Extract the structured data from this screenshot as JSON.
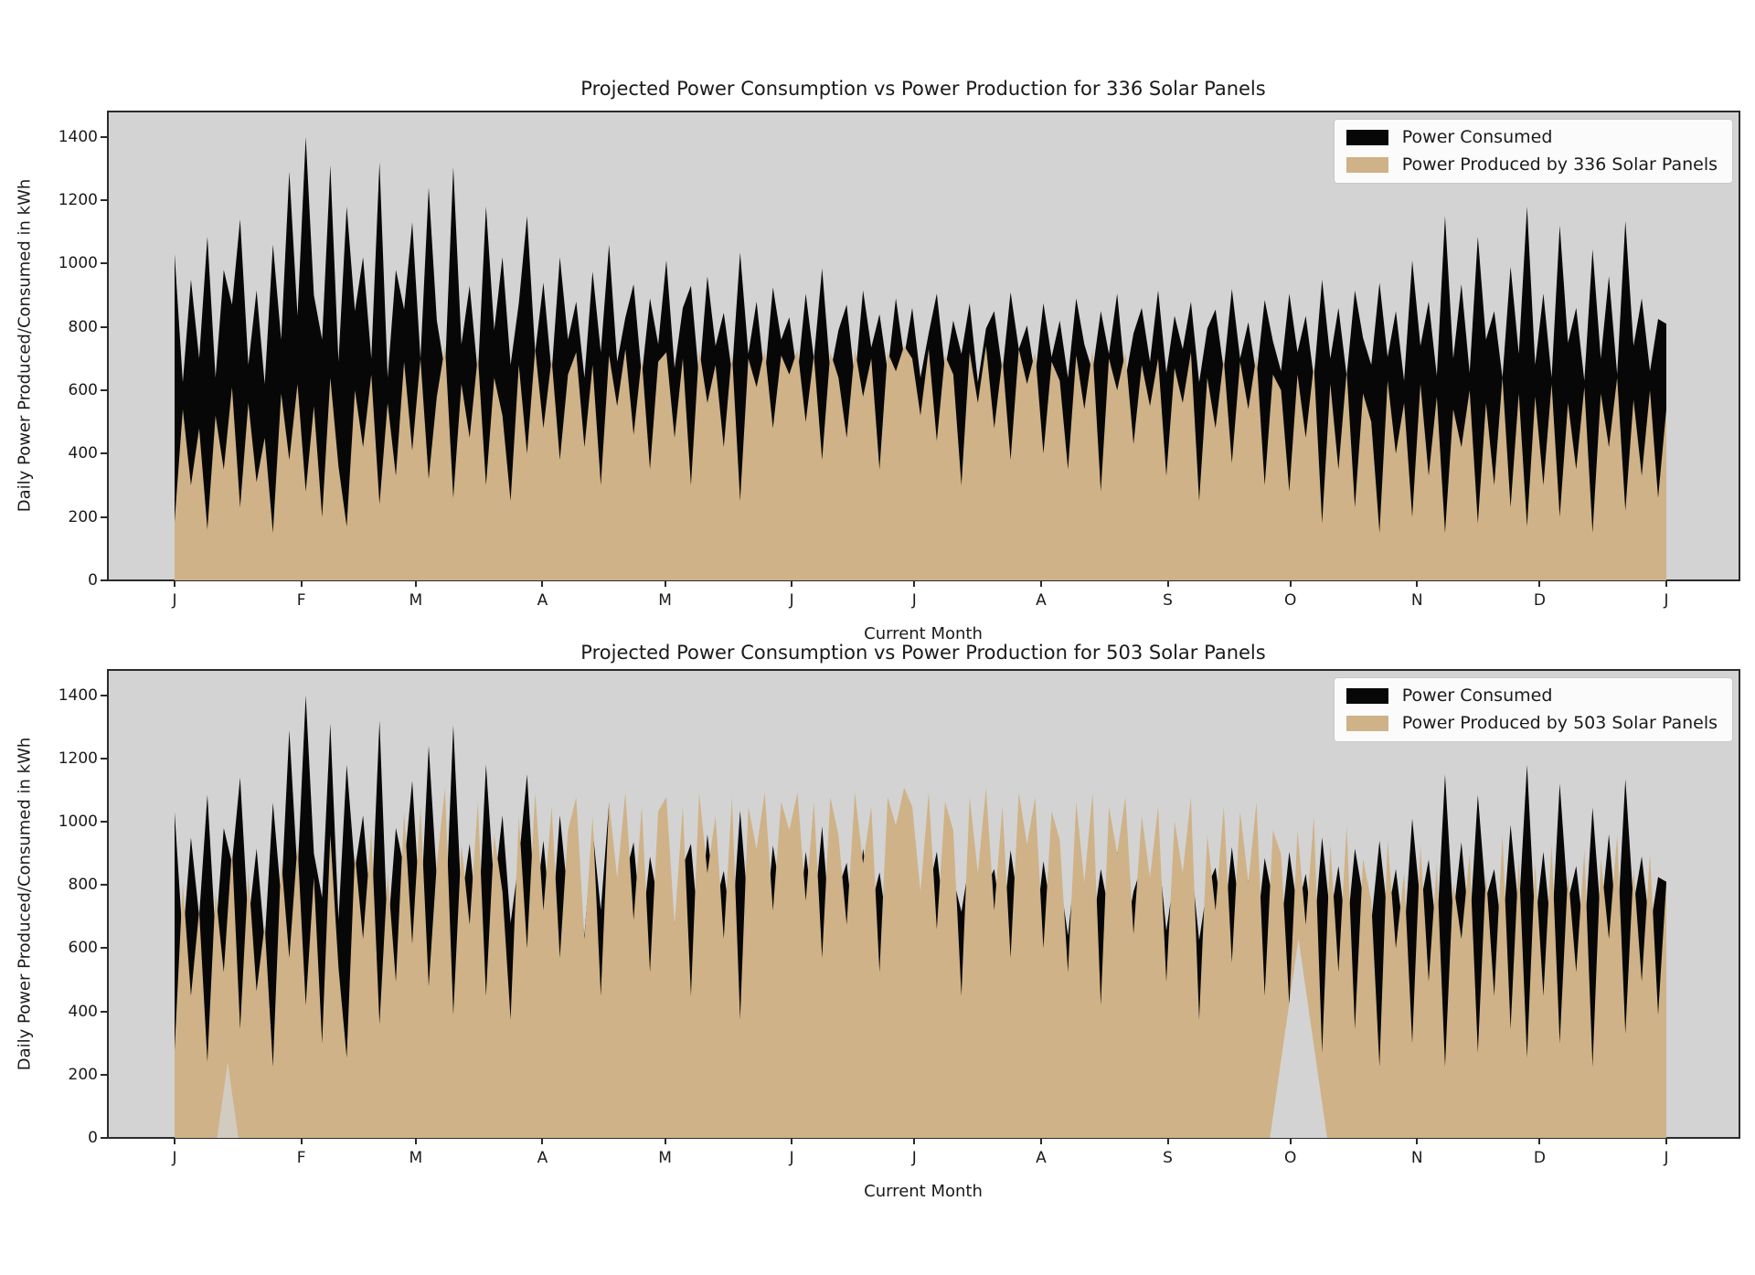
{
  "colors": {
    "consumed": "#070707",
    "produced": "#cfb287",
    "axes_background": "#d3d3d3",
    "figure_background": "#ffffff",
    "spine": "#2b2b2b",
    "legend_background": "#fbfbfb"
  },
  "chart_data": [
    {
      "type": "area",
      "title": "Projected Power Consumption vs Power Production for 336 Solar Panels",
      "xlabel": "Current Month",
      "ylabel": "Daily Power Produced/Consumed in kWh",
      "legend": [
        "Power Consumed",
        "Power Produced by 336 Solar Panels"
      ],
      "legend_position": "upper right",
      "grid": false,
      "ylim": [
        0,
        1480
      ],
      "yticks": [
        0,
        200,
        400,
        600,
        800,
        1000,
        1200,
        1400
      ],
      "xticklabels": [
        "J",
        "F",
        "M",
        "A",
        "M",
        "J",
        "J",
        "A",
        "S",
        "O",
        "N",
        "D",
        "J"
      ],
      "xtick_days": [
        0,
        31,
        59,
        90,
        120,
        151,
        181,
        212,
        243,
        273,
        304,
        334,
        365
      ],
      "x_span_days": 365,
      "series_consumed": [
        1030,
        625,
        950,
        700,
        1085,
        640,
        980,
        870,
        1140,
        680,
        915,
        620,
        1060,
        760,
        1290,
        835,
        1400,
        900,
        760,
        1310,
        690,
        1180,
        850,
        1020,
        700,
        1320,
        640,
        980,
        855,
        1130,
        700,
        1240,
        820,
        660,
        1305,
        745,
        930,
        650,
        1180,
        790,
        1020,
        680,
        875,
        1150,
        720,
        940,
        655,
        1020,
        760,
        880,
        640,
        975,
        720,
        1060,
        690,
        830,
        935,
        645,
        890,
        745,
        1010,
        670,
        860,
        930,
        635,
        960,
        740,
        845,
        655,
        1035,
        715,
        880,
        640,
        925,
        760,
        830,
        645,
        905,
        700,
        985,
        655,
        790,
        870,
        630,
        915,
        735,
        840,
        660,
        890,
        705,
        860,
        640,
        780,
        905,
        665,
        820,
        715,
        875,
        625,
        795,
        850,
        660,
        910,
        730,
        805,
        645,
        875,
        705,
        820,
        640,
        890,
        745,
        660,
        850,
        715,
        905,
        635,
        780,
        860,
        690,
        915,
        655,
        835,
        730,
        880,
        625,
        795,
        855,
        665,
        920,
        700,
        815,
        645,
        885,
        755,
        660,
        905,
        720,
        835,
        640,
        950,
        700,
        860,
        645,
        915,
        765,
        680,
        940,
        705,
        850,
        630,
        1010,
        740,
        880,
        645,
        1150,
        700,
        935,
        655,
        1085,
        760,
        850,
        640,
        990,
        715,
        1180,
        680,
        905,
        640,
        1120,
        750,
        860,
        630,
        1045,
        700,
        960,
        650,
        1135,
        740,
        890,
        660,
        825,
        810
      ],
      "series_produced": [
        185,
        540,
        300,
        480,
        160,
        520,
        350,
        610,
        230,
        560,
        310,
        450,
        150,
        590,
        380,
        620,
        280,
        550,
        200,
        640,
        360,
        170,
        600,
        420,
        650,
        240,
        560,
        330,
        690,
        410,
        700,
        320,
        580,
        740,
        260,
        620,
        450,
        710,
        300,
        640,
        520,
        250,
        680,
        400,
        730,
        480,
        700,
        380,
        650,
        720,
        420,
        680,
        300,
        710,
        550,
        730,
        460,
        700,
        350,
        690,
        720,
        450,
        700,
        300,
        730,
        560,
        680,
        420,
        720,
        250,
        700,
        610,
        730,
        480,
        710,
        650,
        730,
        500,
        710,
        380,
        720,
        640,
        450,
        730,
        580,
        700,
        350,
        720,
        660,
        740,
        700,
        520,
        730,
        440,
        710,
        650,
        300,
        720,
        560,
        740,
        480,
        700,
        380,
        730,
        620,
        720,
        400,
        690,
        630,
        350,
        710,
        540,
        730,
        280,
        700,
        600,
        720,
        430,
        680,
        550,
        700,
        330,
        670,
        560,
        720,
        250,
        640,
        480,
        700,
        370,
        690,
        540,
        710,
        300,
        650,
        600,
        280,
        650,
        450,
        680,
        180,
        620,
        350,
        660,
        230,
        590,
        500,
        150,
        630,
        400,
        560,
        200,
        620,
        330,
        580,
        150,
        540,
        420,
        600,
        180,
        560,
        300,
        640,
        230,
        590,
        170,
        580,
        300,
        620,
        200,
        560,
        350,
        610,
        150,
        590,
        420,
        640,
        220,
        570,
        330,
        600,
        260,
        540
      ],
      "background_gaps": []
    },
    {
      "type": "area",
      "title": "Projected Power Consumption vs Power Production for 503 Solar Panels",
      "xlabel": "Current Month",
      "ylabel": "Daily Power Produced/Consumed in kWh",
      "legend": [
        "Power Consumed",
        "Power Produced by 503 Solar Panels"
      ],
      "legend_position": "upper right",
      "grid": false,
      "ylim": [
        0,
        1480
      ],
      "yticks": [
        0,
        200,
        400,
        600,
        800,
        1000,
        1200,
        1400
      ],
      "xticklabels": [
        "J",
        "F",
        "M",
        "A",
        "M",
        "J",
        "J",
        "A",
        "S",
        "O",
        "N",
        "D",
        "J"
      ],
      "xtick_days": [
        0,
        31,
        59,
        90,
        120,
        151,
        181,
        212,
        243,
        273,
        304,
        334,
        365
      ],
      "x_span_days": 365,
      "series_consumed": [
        1030,
        625,
        950,
        700,
        1085,
        640,
        980,
        870,
        1140,
        680,
        915,
        620,
        1060,
        760,
        1290,
        835,
        1400,
        900,
        760,
        1310,
        690,
        1180,
        850,
        1020,
        700,
        1320,
        640,
        980,
        855,
        1130,
        700,
        1240,
        820,
        660,
        1305,
        745,
        930,
        650,
        1180,
        790,
        1020,
        680,
        875,
        1150,
        720,
        940,
        655,
        1020,
        760,
        880,
        640,
        975,
        720,
        1060,
        690,
        830,
        935,
        645,
        890,
        745,
        1010,
        670,
        860,
        930,
        635,
        960,
        740,
        845,
        655,
        1035,
        715,
        880,
        640,
        925,
        760,
        830,
        645,
        905,
        700,
        985,
        655,
        790,
        870,
        630,
        915,
        735,
        840,
        660,
        890,
        705,
        860,
        640,
        780,
        905,
        665,
        820,
        715,
        875,
        625,
        795,
        850,
        660,
        910,
        730,
        805,
        645,
        875,
        705,
        820,
        640,
        890,
        745,
        660,
        850,
        715,
        905,
        635,
        780,
        860,
        690,
        915,
        655,
        835,
        730,
        880,
        625,
        795,
        855,
        665,
        920,
        700,
        815,
        645,
        885,
        755,
        660,
        905,
        720,
        835,
        640,
        950,
        700,
        860,
        645,
        915,
        765,
        680,
        940,
        705,
        850,
        630,
        1010,
        740,
        880,
        645,
        1150,
        700,
        935,
        655,
        1085,
        760,
        850,
        640,
        990,
        715,
        1180,
        680,
        905,
        640,
        1120,
        750,
        860,
        630,
        1045,
        700,
        960,
        650,
        1135,
        740,
        890,
        660,
        825,
        810
      ],
      "series_produced": [
        277,
        808,
        449,
        719,
        240,
        778,
        524,
        913,
        344,
        838,
        464,
        674,
        225,
        883,
        569,
        928,
        419,
        823,
        299,
        958,
        539,
        254,
        898,
        629,
        973,
        359,
        838,
        494,
        1033,
        614,
        1048,
        479,
        868,
        1108,
        389,
        928,
        674,
        1063,
        449,
        958,
        778,
        374,
        1018,
        599,
        1093,
        719,
        1048,
        569,
        973,
        1078,
        629,
        1018,
        449,
        1063,
        823,
        1093,
        689,
        1048,
        524,
        1033,
        1078,
        674,
        1048,
        449,
        1093,
        838,
        1018,
        629,
        1078,
        374,
        1048,
        913,
        1093,
        719,
        1063,
        973,
        1093,
        749,
        1063,
        569,
        1078,
        958,
        674,
        1093,
        868,
        1048,
        524,
        1078,
        988,
        1108,
        1048,
        778,
        1093,
        659,
        1063,
        973,
        449,
        1078,
        838,
        1108,
        719,
        1048,
        569,
        1093,
        928,
        1078,
        599,
        1033,
        943,
        524,
        1063,
        808,
        1093,
        419,
        1048,
        898,
        1078,
        644,
        1018,
        823,
        1048,
        494,
        1003,
        838,
        1078,
        374,
        958,
        719,
        1048,
        554,
        1033,
        808,
        1063,
        449,
        973,
        898,
        419,
        973,
        674,
        1018,
        269,
        928,
        524,
        988,
        344,
        883,
        749,
        225,
        943,
        599,
        838,
        299,
        928,
        494,
        868,
        225,
        808,
        629,
        898,
        269,
        838,
        449,
        958,
        344,
        883,
        254,
        868,
        449,
        928,
        299,
        838,
        524,
        913,
        225,
        883,
        629,
        958,
        329,
        853,
        494,
        898,
        389,
        808
      ],
      "background_gaps": [
        {
          "center_day": 13,
          "half_width_days": 2.6,
          "apex_value": 240,
          "opacity": 0.75
        },
        {
          "center_day": 275,
          "half_width_days": 7.0,
          "apex_value": 630,
          "opacity": 1.0
        }
      ]
    }
  ]
}
